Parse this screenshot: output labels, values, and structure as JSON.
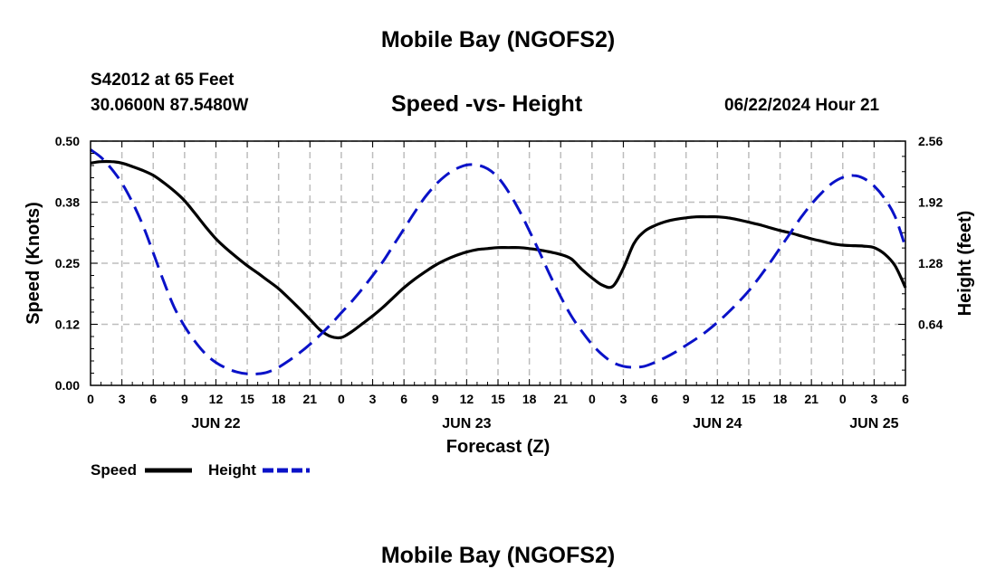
{
  "header": {
    "top_title": "Mobile Bay (NGOFS2)",
    "bottom_title": "Mobile Bay (NGOFS2)",
    "station": "S42012 at 65 Feet",
    "coords": "30.0600N  87.5480W",
    "timestamp": "06/22/2024 Hour 21"
  },
  "chart_data": {
    "type": "line",
    "title": "Speed -vs- Height",
    "xlabel": "Forecast (Z)",
    "ylabel": "Speed (Knots)",
    "y2label": "Height (feet)",
    "xlim": [
      0,
      78
    ],
    "ylim": [
      0,
      0.5
    ],
    "y2lim": [
      0,
      2.56
    ],
    "grid": true,
    "x_tick_values": [
      0,
      3,
      6,
      9,
      12,
      15,
      18,
      21,
      24,
      27,
      30,
      33,
      36,
      39,
      42,
      45,
      48,
      51,
      54,
      57,
      60,
      63,
      66,
      69,
      72,
      75,
      78
    ],
    "x_tick_labels": [
      "0",
      "3",
      "6",
      "9",
      "12",
      "15",
      "18",
      "21",
      "0",
      "3",
      "6",
      "9",
      "12",
      "15",
      "18",
      "21",
      "0",
      "3",
      "6",
      "9",
      "12",
      "15",
      "18",
      "21",
      "0",
      "3",
      "6"
    ],
    "date_labels": [
      {
        "x": 12,
        "label": "JUN 22"
      },
      {
        "x": 36,
        "label": "JUN 23"
      },
      {
        "x": 60,
        "label": "JUN 24"
      },
      {
        "x": 75,
        "label": "JUN 25"
      }
    ],
    "y_ticks": [
      0.0,
      0.125,
      0.25,
      0.375,
      0.5
    ],
    "y_tick_labels": [
      "0.00",
      "0.12",
      "0.25",
      "0.38",
      "0.50"
    ],
    "y2_ticks": [
      0.64,
      1.28,
      1.92,
      2.56
    ],
    "y2_tick_labels": [
      "0.64",
      "1.28",
      "1.92",
      "2.56"
    ],
    "series": [
      {
        "name": "Speed",
        "axis": "left",
        "color": "#000000",
        "dash": "solid",
        "x": [
          0,
          1,
          2,
          3,
          4,
          5,
          6,
          7,
          8,
          9,
          10,
          11,
          12,
          13,
          14,
          15,
          16,
          17,
          18,
          19,
          20,
          21,
          22,
          23,
          24,
          25,
          26,
          27,
          28,
          29,
          30,
          31,
          32,
          33,
          34,
          35,
          36,
          37,
          38,
          39,
          40,
          41,
          42,
          43,
          44,
          45,
          46,
          47,
          48,
          49,
          50,
          51,
          52,
          53,
          54,
          55,
          56,
          57,
          58,
          59,
          60,
          61,
          62,
          63,
          64,
          65,
          66,
          67,
          68,
          69,
          70,
          71,
          72,
          73,
          74,
          75,
          76,
          77,
          78
        ],
        "values": [
          0.455,
          0.458,
          0.458,
          0.455,
          0.448,
          0.44,
          0.43,
          0.415,
          0.398,
          0.378,
          0.352,
          0.325,
          0.3,
          0.28,
          0.262,
          0.245,
          0.23,
          0.214,
          0.198,
          0.178,
          0.157,
          0.135,
          0.113,
          0.1,
          0.098,
          0.11,
          0.126,
          0.142,
          0.16,
          0.18,
          0.2,
          0.217,
          0.232,
          0.246,
          0.257,
          0.266,
          0.273,
          0.278,
          0.28,
          0.282,
          0.282,
          0.282,
          0.28,
          0.277,
          0.273,
          0.268,
          0.259,
          0.238,
          0.22,
          0.205,
          0.203,
          0.24,
          0.29,
          0.315,
          0.327,
          0.335,
          0.34,
          0.343,
          0.345,
          0.345,
          0.345,
          0.343,
          0.339,
          0.334,
          0.329,
          0.323,
          0.317,
          0.312,
          0.306,
          0.3,
          0.295,
          0.29,
          0.287,
          0.286,
          0.285,
          0.282,
          0.269,
          0.245,
          0.2
        ]
      },
      {
        "name": "Height",
        "axis": "right",
        "color": "#0a12c8",
        "dash": "dashed",
        "x": [
          0,
          1,
          2,
          3,
          4,
          5,
          6,
          7,
          8,
          9,
          10,
          11,
          12,
          13,
          14,
          15,
          16,
          17,
          18,
          19,
          20,
          21,
          22,
          23,
          24,
          25,
          26,
          27,
          28,
          29,
          30,
          31,
          32,
          33,
          34,
          35,
          36,
          37,
          38,
          39,
          40,
          41,
          42,
          43,
          44,
          45,
          46,
          47,
          48,
          49,
          50,
          51,
          52,
          53,
          54,
          55,
          56,
          57,
          58,
          59,
          60,
          61,
          62,
          63,
          64,
          65,
          66,
          67,
          68,
          69,
          70,
          71,
          72,
          73,
          74,
          75,
          76,
          77,
          78
        ],
        "values": [
          2.47,
          2.39,
          2.27,
          2.12,
          1.92,
          1.68,
          1.39,
          1.09,
          0.82,
          0.62,
          0.46,
          0.33,
          0.24,
          0.18,
          0.14,
          0.12,
          0.12,
          0.14,
          0.19,
          0.26,
          0.34,
          0.43,
          0.53,
          0.64,
          0.76,
          0.88,
          1.01,
          1.15,
          1.3,
          1.47,
          1.64,
          1.81,
          1.97,
          2.1,
          2.2,
          2.27,
          2.31,
          2.31,
          2.27,
          2.18,
          2.03,
          1.84,
          1.62,
          1.39,
          1.15,
          0.93,
          0.73,
          0.57,
          0.43,
          0.32,
          0.24,
          0.2,
          0.19,
          0.2,
          0.24,
          0.29,
          0.35,
          0.42,
          0.49,
          0.57,
          0.66,
          0.76,
          0.87,
          0.99,
          1.13,
          1.28,
          1.44,
          1.6,
          1.76,
          1.9,
          2.02,
          2.12,
          2.18,
          2.2,
          2.17,
          2.09,
          1.96,
          1.77,
          1.45
        ]
      }
    ],
    "legend": {
      "placement": "bottom-left",
      "entries": [
        {
          "label": "Speed",
          "color": "#000000",
          "dash": "solid"
        },
        {
          "label": "Height",
          "color": "#0a12c8",
          "dash": "dashed"
        }
      ]
    }
  }
}
